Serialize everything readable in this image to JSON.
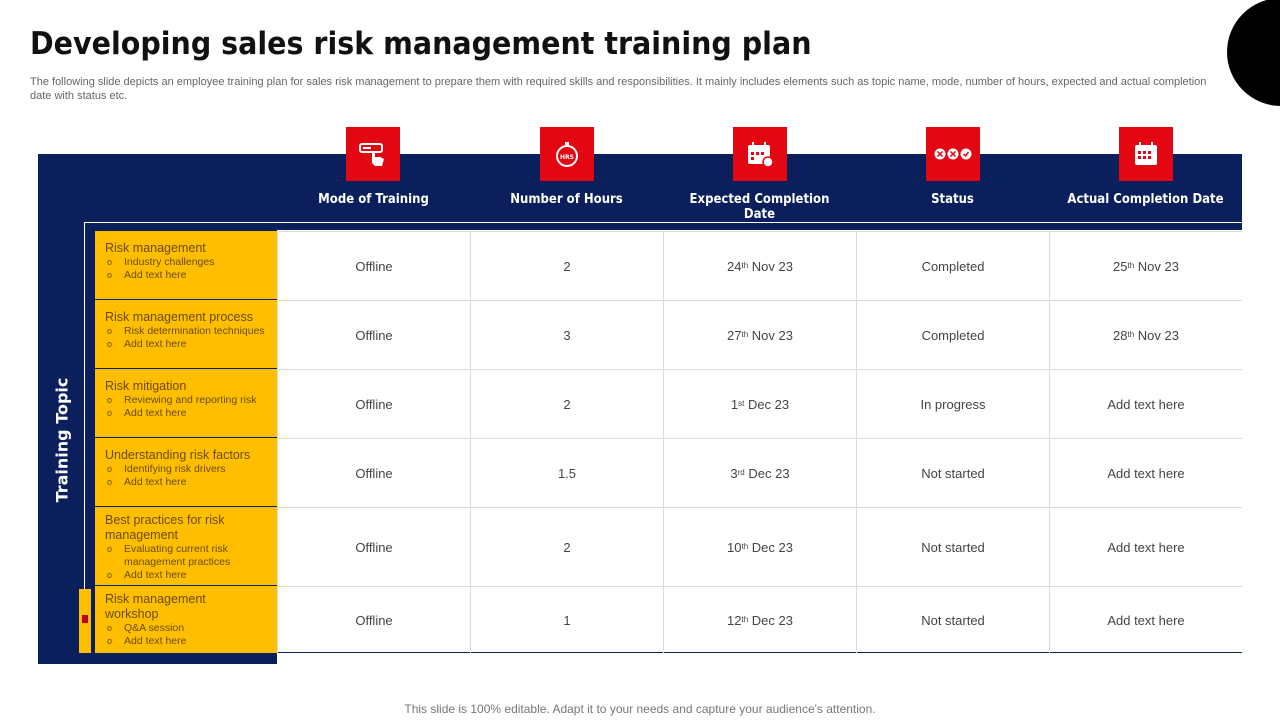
{
  "title": "Developing sales risk management training plan",
  "subtitle": "The following slide depicts an employee training plan for sales risk management to prepare them with required skills and responsibilities. It mainly includes elements such as topic name, mode, number of hours, expected and actual completion date with status etc.",
  "side_label": "Training Topic",
  "columns": [
    {
      "label": "Mode of Training",
      "icon": "hand-pointer-icon"
    },
    {
      "label": "Number of Hours",
      "icon": "stopwatch-icon"
    },
    {
      "label": "Expected Completion Date",
      "icon": "calendar-clock-icon"
    },
    {
      "label": "Status",
      "icon": "status-icons"
    },
    {
      "label": "Actual Completion Date",
      "icon": "calendar-icon"
    }
  ],
  "rows": [
    {
      "topic": "Risk management",
      "subs": [
        "Industry challenges",
        "Add text here"
      ],
      "mode": "Offline",
      "hours": "2",
      "expected": {
        "day": "24",
        "suffix": "th",
        "rest": "Nov 23"
      },
      "status": "Completed",
      "actual": {
        "day": "25",
        "suffix": "th",
        "rest": "Nov 23"
      }
    },
    {
      "topic": "Risk management  process",
      "subs": [
        "Risk determination techniques",
        "Add text here"
      ],
      "mode": "Offline",
      "hours": "3",
      "expected": {
        "day": "27",
        "suffix": "th",
        "rest": "Nov 23"
      },
      "status": "Completed",
      "actual": {
        "day": "28",
        "suffix": "th",
        "rest": "Nov 23"
      }
    },
    {
      "topic": "Risk mitigation",
      "subs": [
        "Reviewing and reporting risk",
        "Add text here"
      ],
      "mode": "Offline",
      "hours": "2",
      "expected": {
        "day": "1",
        "suffix": "st",
        "rest": "Dec 23"
      },
      "status": "In progress",
      "actual": {
        "text": "Add text here"
      }
    },
    {
      "topic": "Understanding  risk factors",
      "subs": [
        "Identifying risk drivers",
        "Add text here"
      ],
      "mode": "Offline",
      "hours": "1.5",
      "expected": {
        "day": "3",
        "suffix": "rd",
        "rest": "Dec 23"
      },
      "status": "Not started",
      "actual": {
        "text": "Add text here"
      }
    },
    {
      "topic": "Best practices for risk management",
      "subs": [
        "Evaluating current risk management  practices",
        "Add text here"
      ],
      "mode": "Offline",
      "hours": "2",
      "expected": {
        "day": "10",
        "suffix": "th",
        "rest": "Dec 23"
      },
      "status": "Not started",
      "actual": {
        "text": "Add text here"
      }
    },
    {
      "topic": "Risk management workshop",
      "subs": [
        "Q&A session",
        "Add text here"
      ],
      "mode": "Offline",
      "hours": "1",
      "expected": {
        "day": "12",
        "suffix": "th",
        "rest": "Dec 23"
      },
      "status": "Not started",
      "actual": {
        "text": "Add text here"
      }
    }
  ],
  "footer": "This slide is 100% editable. Adapt it to your needs and capture your audience's attention.",
  "colors": {
    "navy": "#0a1f5c",
    "red": "#e30613",
    "yellow": "#ffbf00"
  }
}
